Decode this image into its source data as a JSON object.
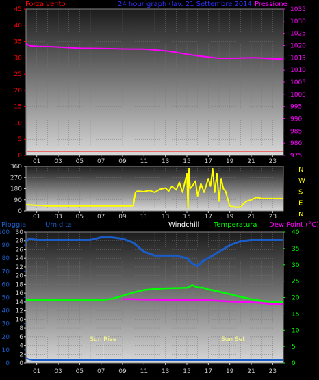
{
  "chart_data": [
    {
      "type": "line",
      "title": "24 hour graph (lav.  21 Settembre 2014 )",
      "left_axis_label": "Forza vento",
      "right_axis_label": "Pressione",
      "x_ticks": [
        "01",
        "03",
        "05",
        "07",
        "09",
        "11",
        "13",
        "15",
        "17",
        "19",
        "21",
        "23"
      ],
      "left_ylim": [
        0,
        45
      ],
      "left_yticks": [
        0,
        5,
        10,
        15,
        20,
        25,
        30,
        35,
        40,
        45
      ],
      "right_ylim": [
        975,
        1035
      ],
      "right_yticks": [
        975,
        980,
        985,
        990,
        995,
        1000,
        1005,
        1010,
        1015,
        1020,
        1025,
        1030,
        1035
      ],
      "series": [
        {
          "name": "Pressione",
          "axis": "right",
          "color": "#ff00ff",
          "x": [
            0,
            0.3,
            1,
            2,
            3,
            5,
            7,
            9,
            11,
            12,
            13,
            14,
            15,
            16,
            17,
            18,
            19,
            20,
            21,
            22,
            23,
            24
          ],
          "y": [
            1020.8,
            1020,
            1019.7,
            1019.6,
            1019.4,
            1018.9,
            1018.8,
            1018.6,
            1018.5,
            1018.2,
            1017.8,
            1017.2,
            1016.4,
            1015.8,
            1015.3,
            1014.8,
            1014.8,
            1014.9,
            1015.0,
            1014.9,
            1014.6,
            1014.5
          ]
        },
        {
          "name": "Forza vento",
          "axis": "left",
          "color": "#ff0000",
          "x": [
            0,
            24
          ],
          "y": [
            0,
            0
          ]
        }
      ],
      "grid": true
    },
    {
      "type": "line",
      "right_axis_label": "N W S E N",
      "compass": [
        "N",
        "W",
        "S",
        "E",
        "N"
      ],
      "x_ticks": [
        "01",
        "03",
        "05",
        "07",
        "09",
        "11",
        "13",
        "15",
        "17",
        "19",
        "21",
        "23"
      ],
      "ylim": [
        0,
        360
      ],
      "yticks": [
        0,
        90,
        180,
        270,
        360
      ],
      "series": [
        {
          "name": "Direzione vento",
          "color": "#ffff00",
          "x": [
            0,
            1,
            2,
            3,
            4,
            5,
            6,
            7,
            8,
            9,
            10,
            10.2,
            10.4,
            11,
            11.5,
            12,
            12.5,
            13,
            13.3,
            13.6,
            14,
            14.3,
            14.6,
            15,
            15.1,
            15.2,
            15.3,
            15.5,
            15.8,
            16,
            16.3,
            16.6,
            17,
            17.2,
            17.4,
            17.6,
            17.8,
            18,
            18.2,
            18.4,
            18.6,
            19,
            19.5,
            20,
            20.3,
            20.6,
            21,
            21.5,
            22,
            23,
            24
          ],
          "y": [
            50,
            45,
            40,
            40,
            40,
            40,
            40,
            40,
            40,
            40,
            40,
            150,
            160,
            155,
            165,
            150,
            175,
            185,
            160,
            200,
            170,
            230,
            150,
            300,
            20,
            340,
            180,
            200,
            240,
            120,
            220,
            150,
            260,
            200,
            340,
            150,
            300,
            80,
            260,
            180,
            160,
            40,
            30,
            30,
            60,
            80,
            90,
            110,
            100,
            100,
            100
          ]
        }
      ],
      "grid": true
    },
    {
      "type": "line",
      "legend": [
        "Pioggia",
        "Umidita",
        "Windchill",
        "Temperatura",
        "Dew Point (°C)"
      ],
      "x_ticks": [
        "01",
        "03",
        "05",
        "07",
        "09",
        "11",
        "13",
        "15",
        "17",
        "19",
        "21",
        "23"
      ],
      "left_ylim": [
        0,
        100
      ],
      "left_yticks": [
        0,
        10,
        20,
        30,
        40,
        50,
        60,
        70,
        80,
        90,
        100
      ],
      "left_ylim_inner": [
        0,
        30
      ],
      "inner_yticks": [
        0,
        2,
        4,
        6,
        8,
        10,
        12,
        14,
        16,
        18,
        20,
        22,
        24,
        26,
        28,
        30
      ],
      "right_ylim": [
        0,
        40
      ],
      "right_yticks": [
        0,
        5,
        10,
        15,
        20,
        25,
        30,
        35,
        40
      ],
      "annotations": [
        {
          "text": "Sun Rise",
          "x": 7.2
        },
        {
          "text": "Sun Set",
          "x": 19.3
        }
      ],
      "series": [
        {
          "name": "Umidita",
          "axis": "left",
          "color": "#1a5dc8",
          "x": [
            0,
            0.3,
            1,
            2,
            4,
            6,
            7,
            8,
            9,
            10,
            11,
            12,
            13,
            14,
            15,
            15.5,
            16,
            16.5,
            17,
            18,
            19,
            20,
            21,
            22,
            23,
            24
          ],
          "y": [
            93,
            95,
            94,
            94,
            94,
            94,
            96,
            96,
            95,
            92,
            85,
            82,
            82,
            82,
            80,
            76,
            74,
            78,
            80,
            85,
            90,
            93,
            94,
            94,
            94,
            94
          ]
        },
        {
          "name": "Temperatura",
          "axis": "right",
          "color": "#00ff00",
          "x": [
            0,
            1,
            2,
            3,
            4,
            5,
            6,
            7,
            8,
            9,
            10,
            11,
            12,
            13,
            14,
            15,
            15.5,
            16,
            16.5,
            17,
            18,
            19,
            20,
            21,
            22,
            23,
            24
          ],
          "y": [
            19.2,
            19.3,
            19.2,
            19.2,
            19.2,
            19.2,
            19.2,
            19.2,
            19.6,
            20.5,
            21.5,
            22.3,
            22.6,
            22.8,
            22.9,
            23.0,
            23.8,
            23.1,
            23.0,
            22.5,
            21.8,
            21.0,
            20.2,
            19.5,
            19.0,
            18.7,
            18.6
          ]
        },
        {
          "name": "Dew Point (°C)",
          "axis": "right",
          "color": "#ff00ff",
          "x": [
            9,
            10,
            11,
            12,
            13,
            14,
            15,
            16,
            17,
            18,
            19,
            20,
            21,
            22,
            23,
            24
          ],
          "y": [
            19.5,
            19.5,
            19.4,
            19.4,
            19.2,
            19.2,
            19.2,
            19.3,
            19.2,
            19.0,
            18.8,
            18.7,
            18.6,
            18.3,
            18.0,
            17.9
          ]
        },
        {
          "name": "Windchill",
          "axis": "right",
          "color": "#ffffff",
          "x": [],
          "y": []
        },
        {
          "name": "Pioggia",
          "axis": "left",
          "color": "#1a5dc8",
          "x": [
            0,
            0.3,
            0.6,
            24
          ],
          "y": [
            2,
            1,
            0.5,
            0.5
          ]
        }
      ],
      "grid": true
    }
  ]
}
